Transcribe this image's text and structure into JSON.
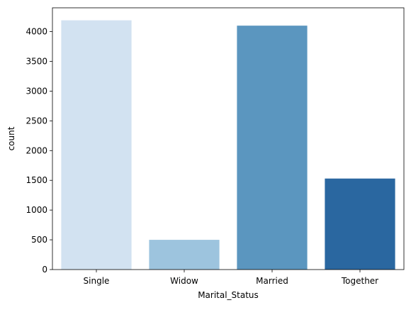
{
  "chart_data": {
    "type": "bar",
    "title": "",
    "xlabel": "Marital_Status",
    "ylabel": "count",
    "categories": [
      "Single",
      "Widow",
      "Married",
      "Together"
    ],
    "values": [
      4190,
      500,
      4100,
      1530
    ],
    "colors": [
      "#d2e2f1",
      "#9dc4de",
      "#5b96bf",
      "#2a67a0"
    ],
    "ylim": [
      0,
      4400
    ],
    "yticks": [
      0,
      500,
      1000,
      1500,
      2000,
      2500,
      3000,
      3500,
      4000
    ],
    "grid": false,
    "legend": "none"
  }
}
